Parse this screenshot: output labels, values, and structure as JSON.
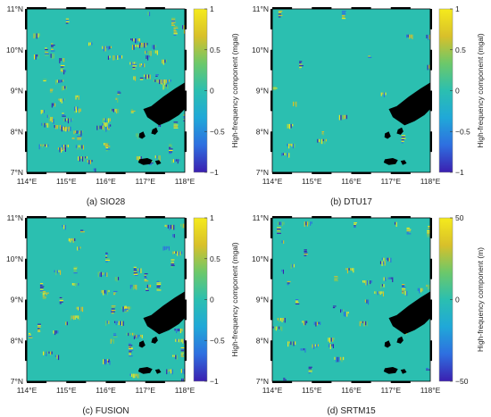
{
  "colors": {
    "background": "#2bbfb0",
    "land": "#000000",
    "colormap": [
      "#3b1fb0",
      "#2e6fe0",
      "#20a8d8",
      "#2bbfb0",
      "#6cc86a",
      "#d8c02a",
      "#f5ea1c"
    ]
  },
  "chart_data": [
    {
      "type": "heatmap",
      "caption": "(a) SIO28",
      "x_ticks": [
        "114°E",
        "115°E",
        "116°E",
        "117°E",
        "118°E"
      ],
      "y_ticks": [
        "11°N",
        "10°N",
        "9°N",
        "8°N",
        "7°N"
      ],
      "xlim": [
        114,
        118
      ],
      "ylim": [
        7,
        11
      ],
      "colorbar_label": "High-frequency component (mgal)",
      "colorbar_ticks": [
        "1",
        "0.5",
        "0",
        "−0.5",
        "−1"
      ],
      "clim": [
        -1,
        1
      ],
      "noise_density": 0.55
    },
    {
      "type": "heatmap",
      "caption": "(b) DTU17",
      "x_ticks": [
        "114°E",
        "115°E",
        "116°E",
        "117°E",
        "118°E"
      ],
      "y_ticks": [
        "11°N",
        "10°N",
        "9°N",
        "8°N",
        "7°N"
      ],
      "xlim": [
        114,
        118
      ],
      "ylim": [
        7,
        11
      ],
      "colorbar_label": "High-frequency component (mgal)",
      "colorbar_ticks": [
        "1",
        "0.5",
        "0",
        "−0.5",
        "−1"
      ],
      "clim": [
        -1,
        1
      ],
      "noise_density": 0.12
    },
    {
      "type": "heatmap",
      "caption": "(c) FUSION",
      "x_ticks": [
        "114°E",
        "115°E",
        "116°E",
        "117°E",
        "118°E"
      ],
      "y_ticks": [
        "11°N",
        "10°N",
        "9°N",
        "8°N",
        "7°N"
      ],
      "xlim": [
        114,
        118
      ],
      "ylim": [
        7,
        11
      ],
      "colorbar_label": "High-frequency component (mgal)",
      "colorbar_ticks": [
        "1",
        "0.5",
        "0",
        "−0.5",
        "−1"
      ],
      "clim": [
        -1,
        1
      ],
      "noise_density": 0.4
    },
    {
      "type": "heatmap",
      "caption": "(d) SRTM15",
      "x_ticks": [
        "114°E",
        "115°E",
        "116°E",
        "117°E",
        "118°E"
      ],
      "y_ticks": [
        "11°N",
        "10°N",
        "9°N",
        "8°N",
        "7°N"
      ],
      "xlim": [
        114,
        118
      ],
      "ylim": [
        7,
        11
      ],
      "colorbar_label": "High-frequency component (m)",
      "colorbar_ticks": [
        "50",
        "0",
        "−50"
      ],
      "clim": [
        -50,
        50
      ],
      "noise_density": 0.3
    }
  ]
}
